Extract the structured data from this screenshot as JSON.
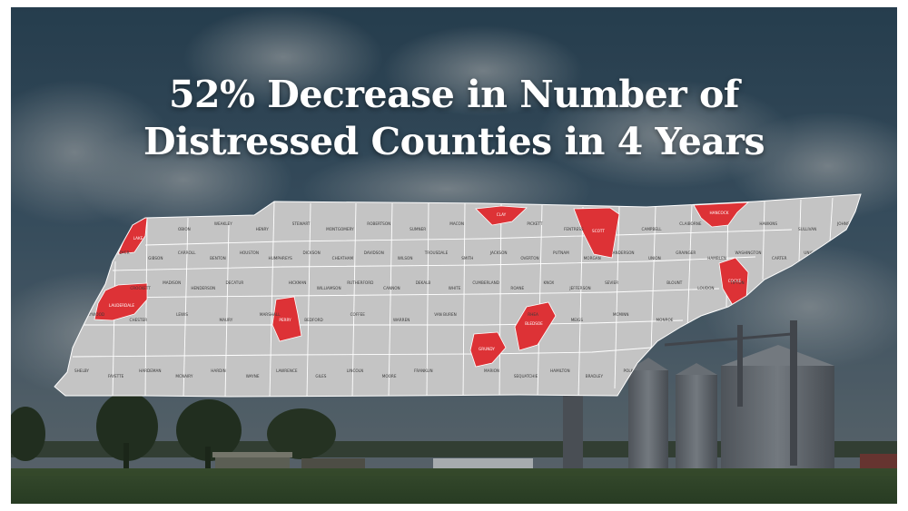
{
  "headline": {
    "line1": "52% Decrease in Number of",
    "line2": "Distressed Counties in 4 Years"
  },
  "colors": {
    "state_fill": "#c4c4c4",
    "county_border": "#ffffff",
    "distressed_fill": "#dd3236",
    "sky_top": "#2f4a5c",
    "field": "#3a5230"
  },
  "map": {
    "region": "Tennessee",
    "distressed_counties": [
      "Lake",
      "Lauderdale",
      "Perry",
      "Grundy",
      "Bledsoe",
      "Clay",
      "Scott",
      "Hancock",
      "Cocke"
    ],
    "county_labels": [
      "LAKE",
      "OBION",
      "WEAKLEY",
      "HENRY",
      "STEWART",
      "MONTGOMERY",
      "ROBERTSON",
      "SUMNER",
      "MACON",
      "CLAY",
      "PICKETT",
      "FENTRESS",
      "SCOTT",
      "CAMPBELL",
      "CLAIBORNE",
      "HANCOCK",
      "HAWKINS",
      "SULLIVAN",
      "JOHNSON",
      "DYER",
      "GIBSON",
      "CARROLL",
      "BENTON",
      "HOUSTON",
      "HUMPHREYS",
      "DICKSON",
      "CHEATHAM",
      "DAVIDSON",
      "WILSON",
      "TROUSDALE",
      "SMITH",
      "JACKSON",
      "OVERTON",
      "PUTNAM",
      "MORGAN",
      "ANDERSON",
      "UNION",
      "GRAINGER",
      "HAMBLEN",
      "WASHINGTON",
      "CARTER",
      "UNICOI",
      "GREENE",
      "LAUDERDALE",
      "CROCKETT",
      "MADISON",
      "HENDERSON",
      "DECATUR",
      "PERRY",
      "HICKMAN",
      "WILLIAMSON",
      "RUTHERFORD",
      "CANNON",
      "DEKALB",
      "WHITE",
      "CUMBERLAND",
      "ROANE",
      "KNOX",
      "JEFFERSON",
      "SEVIER",
      "COCKE",
      "BLOUNT",
      "LOUDON",
      "TIPTON",
      "HAYWOOD",
      "CHESTER",
      "LEWIS",
      "MAURY",
      "MARSHALL",
      "BEDFORD",
      "COFFEE",
      "WARREN",
      "VAN BUREN",
      "BLEDSOE",
      "RHEA",
      "MEIGS",
      "MCMINN",
      "MONROE",
      "SHELBY",
      "FAYETTE",
      "HARDEMAN",
      "MCNAIRY",
      "HARDIN",
      "WAYNE",
      "LAWRENCE",
      "GILES",
      "LINCOLN",
      "MOORE",
      "FRANKLIN",
      "GRUNDY",
      "MARION",
      "SEQUATCHIE",
      "HAMILTON",
      "BRADLEY",
      "POLK"
    ]
  }
}
